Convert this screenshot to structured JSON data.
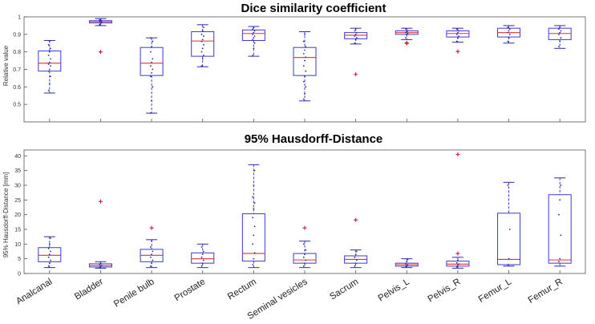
{
  "chart_data": [
    {
      "type": "box",
      "title": "Dice similarity coefficient",
      "ylabel": "Relative value",
      "xlabel": "",
      "ylim": [
        0.4,
        1.0
      ],
      "yticks": [
        "0.5",
        "0.6",
        "0.7",
        "0.8",
        "0.9",
        "1"
      ],
      "yticks_values": [
        0.5,
        0.6,
        0.7,
        0.8,
        0.9,
        1.0
      ],
      "grid": false,
      "colors": {
        "box": "#3a3ad8",
        "median": "#e03030",
        "whisker": "#2a2ab0",
        "outlier": "#c41e3a",
        "points": "#2b2b9e"
      },
      "categories": [
        "Analcanal",
        "Bladder",
        "Penile bulb",
        "Prostate",
        "Rectum",
        "Seminal vesicles",
        "Sacrum",
        "Pelvis_L",
        "Pelvis_R",
        "Femur_L",
        "Femur_R"
      ],
      "boxes": [
        {
          "whisker_low": 0.565,
          "q1": 0.69,
          "median": 0.735,
          "q3": 0.805,
          "whisker_high": 0.865,
          "outliers": [],
          "points": [
            0.58,
            0.62,
            0.66,
            0.69,
            0.7,
            0.72,
            0.73,
            0.74,
            0.76,
            0.78,
            0.8,
            0.82,
            0.84,
            0.86
          ]
        },
        {
          "whisker_low": 0.95,
          "q1": 0.965,
          "median": 0.972,
          "q3": 0.978,
          "whisker_high": 0.99,
          "outliers": [
            0.8
          ],
          "points": [
            0.955,
            0.962,
            0.968,
            0.972,
            0.975,
            0.978,
            0.982,
            0.986
          ]
        },
        {
          "whisker_low": 0.45,
          "q1": 0.665,
          "median": 0.735,
          "q3": 0.825,
          "whisker_high": 0.88,
          "outliers": [],
          "points": [
            0.45,
            0.52,
            0.6,
            0.66,
            0.68,
            0.7,
            0.72,
            0.74,
            0.76,
            0.8,
            0.83,
            0.86,
            0.88
          ]
        },
        {
          "whisker_low": 0.715,
          "q1": 0.775,
          "median": 0.862,
          "q3": 0.915,
          "whisker_high": 0.955,
          "outliers": [],
          "points": [
            0.72,
            0.76,
            0.78,
            0.8,
            0.82,
            0.84,
            0.86,
            0.87,
            0.89,
            0.9,
            0.92,
            0.94
          ]
        },
        {
          "whisker_low": 0.775,
          "q1": 0.865,
          "median": 0.905,
          "q3": 0.925,
          "whisker_high": 0.945,
          "outliers": [],
          "points": [
            0.78,
            0.82,
            0.85,
            0.87,
            0.88,
            0.89,
            0.9,
            0.91,
            0.92,
            0.93,
            0.94
          ]
        },
        {
          "whisker_low": 0.52,
          "q1": 0.665,
          "median": 0.768,
          "q3": 0.825,
          "whisker_high": 0.915,
          "outliers": [],
          "points": [
            0.53,
            0.56,
            0.6,
            0.63,
            0.66,
            0.69,
            0.72,
            0.75,
            0.77,
            0.79,
            0.81,
            0.83,
            0.86,
            0.9
          ]
        },
        {
          "whisker_low": 0.845,
          "q1": 0.875,
          "median": 0.895,
          "q3": 0.91,
          "whisker_high": 0.935,
          "outliers": [
            0.672
          ],
          "points": [
            0.85,
            0.87,
            0.88,
            0.89,
            0.9,
            0.91,
            0.92,
            0.93
          ]
        },
        {
          "whisker_low": 0.87,
          "q1": 0.9,
          "median": 0.91,
          "q3": 0.92,
          "whisker_high": 0.935,
          "outliers": [
            0.852,
            0.848
          ],
          "points": [
            0.88,
            0.9,
            0.905,
            0.91,
            0.915,
            0.92,
            0.93
          ]
        },
        {
          "whisker_low": 0.855,
          "q1": 0.885,
          "median": 0.905,
          "q3": 0.92,
          "whisker_high": 0.935,
          "outliers": [
            0.802
          ],
          "points": [
            0.86,
            0.88,
            0.89,
            0.9,
            0.91,
            0.92,
            0.93
          ]
        },
        {
          "whisker_low": 0.85,
          "q1": 0.885,
          "median": 0.91,
          "q3": 0.935,
          "whisker_high": 0.95,
          "outliers": [],
          "points": [
            0.86,
            0.88,
            0.9,
            0.91,
            0.92,
            0.93,
            0.94
          ]
        },
        {
          "whisker_low": 0.82,
          "q1": 0.87,
          "median": 0.905,
          "q3": 0.935,
          "whisker_high": 0.95,
          "outliers": [],
          "points": [
            0.83,
            0.86,
            0.88,
            0.9,
            0.91,
            0.92,
            0.93,
            0.94
          ]
        }
      ]
    },
    {
      "type": "box",
      "title": "95% Hausdorff-Distance",
      "ylabel": "95% Hausdorff-Distance [mm]",
      "xlabel": "",
      "ylim": [
        0,
        42
      ],
      "yticks": [
        "0",
        "5",
        "10",
        "15",
        "20",
        "25",
        "30",
        "35",
        "40"
      ],
      "yticks_values": [
        0,
        5,
        10,
        15,
        20,
        25,
        30,
        35,
        40
      ],
      "grid": false,
      "colors": {
        "box": "#3a3ad8",
        "median": "#e03030",
        "whisker": "#2a2ab0",
        "outlier": "#c41e3a",
        "points": "#2b2b9e"
      },
      "categories": [
        "Analcanal",
        "Bladder",
        "Penile bulb",
        "Prostate",
        "Rectum",
        "Seminal vesicles",
        "Sacrum",
        "Pelvis_L",
        "Pelvis_R",
        "Femur_L",
        "Femur_R"
      ],
      "boxes": [
        {
          "whisker_low": 2.0,
          "q1": 4.0,
          "median": 6.2,
          "q3": 8.8,
          "whisker_high": 12.5,
          "outliers": [],
          "points": [
            2.5,
            3.5,
            4.5,
            5.5,
            6.5,
            7.5,
            8.5,
            10.0,
            12.0
          ]
        },
        {
          "whisker_low": 1.8,
          "q1": 2.2,
          "median": 2.7,
          "q3": 3.3,
          "whisker_high": 4.0,
          "outliers": [
            24.5
          ],
          "points": [
            2.0,
            2.4,
            2.8,
            3.1,
            3.5
          ]
        },
        {
          "whisker_low": 2.0,
          "q1": 4.0,
          "median": 6.2,
          "q3": 8.2,
          "whisker_high": 11.5,
          "outliers": [
            15.5
          ],
          "points": [
            2.5,
            3.5,
            4.5,
            5.5,
            6.5,
            7.5,
            9.0,
            11.0
          ]
        },
        {
          "whisker_low": 2.0,
          "q1": 3.5,
          "median": 5.0,
          "q3": 7.0,
          "whisker_high": 10.0,
          "outliers": [],
          "points": [
            2.5,
            3.5,
            4.5,
            5.5,
            6.5,
            7.5,
            9.0
          ]
        },
        {
          "whisker_low": 2.0,
          "q1": 4.2,
          "median": 6.8,
          "q3": 20.3,
          "whisker_high": 37.0,
          "outliers": [],
          "points": [
            3.0,
            5.0,
            7.0,
            10.0,
            13.0,
            16.0,
            19.0,
            22.0,
            24.0,
            26.0,
            30.0,
            35.0
          ]
        },
        {
          "whisker_low": 2.0,
          "q1": 3.5,
          "median": 4.6,
          "q3": 6.8,
          "whisker_high": 11.0,
          "outliers": [
            15.5
          ],
          "points": [
            2.5,
            3.5,
            4.5,
            5.5,
            6.5,
            8.0,
            10.0
          ]
        },
        {
          "whisker_low": 2.0,
          "q1": 3.5,
          "median": 4.8,
          "q3": 6.0,
          "whisker_high": 8.0,
          "outliers": [
            18.2
          ],
          "points": [
            2.5,
            3.5,
            4.5,
            5.5,
            6.5,
            7.5
          ]
        },
        {
          "whisker_low": 2.0,
          "q1": 2.5,
          "median": 3.0,
          "q3": 3.5,
          "whisker_high": 5.0,
          "outliers": [],
          "points": [
            2.2,
            2.7,
            3.0,
            3.3,
            4.0,
            4.8
          ]
        },
        {
          "whisker_low": 1.8,
          "q1": 2.5,
          "median": 3.2,
          "q3": 4.2,
          "whisker_high": 5.5,
          "outliers": [
            40.5,
            6.8
          ],
          "points": [
            2.2,
            2.8,
            3.2,
            3.6,
            4.5
          ]
        },
        {
          "whisker_low": 2.5,
          "q1": 3.0,
          "median": 4.8,
          "q3": 20.5,
          "whisker_high": 31.0,
          "outliers": [],
          "points": [
            3.0,
            5.0,
            15.0,
            30.0
          ]
        },
        {
          "whisker_low": 2.5,
          "q1": 3.5,
          "median": 4.6,
          "q3": 26.8,
          "whisker_high": 32.5,
          "outliers": [],
          "points": [
            4.0,
            5.0,
            13.0,
            20.0,
            25.0,
            30.0
          ]
        }
      ]
    }
  ]
}
